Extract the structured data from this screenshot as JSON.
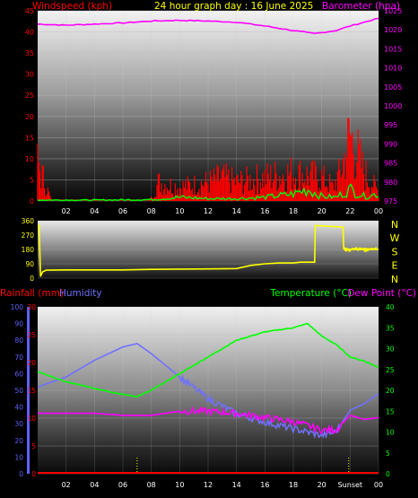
{
  "page": {
    "title": "24 hour graph day : 16 June 2025"
  },
  "colors": {
    "wind": "#ff0000",
    "gust": "#00ff00",
    "barometer": "#ff00ff",
    "direction": "#ffff00",
    "rain": "#ff0000",
    "humidity": "#7070ff",
    "temperature": "#00ff00",
    "dewpoint": "#ff00ff",
    "compass": "#ffff00",
    "axis_left": "#ff0000",
    "axis_hum": "#6060ff",
    "axis_right": "#ffff00",
    "axis_baro": "#ff00ff",
    "sunset_line": "#ffff00"
  },
  "chart_data": [
    {
      "type": "line",
      "name": "wind-barometer",
      "title": "24 hour graph day : 16 June 2025",
      "ylabel": "Windspeed (kph)",
      "y2label": "Barometer (hpa)",
      "x_ticks": [
        "02",
        "04",
        "06",
        "08",
        "10",
        "12",
        "14",
        "16",
        "18",
        "20",
        "22",
        "00"
      ],
      "x_range": [
        0,
        24
      ],
      "ylim": [
        0,
        45
      ],
      "y_ticks": [
        0,
        5,
        10,
        15,
        20,
        25,
        30,
        35,
        40,
        45
      ],
      "y2lim": [
        975,
        1025
      ],
      "y2_ticks": [
        975,
        980,
        985,
        990,
        995,
        1000,
        1005,
        1010,
        1015,
        1020,
        1025
      ],
      "series": [
        {
          "name": "Barometer",
          "axis": "right",
          "x": [
            0,
            2,
            4,
            6,
            8,
            10,
            12,
            14,
            16,
            18,
            19.5,
            21,
            22,
            23,
            24
          ],
          "y": [
            1021.5,
            1021.2,
            1021.5,
            1021.8,
            1022.3,
            1022.5,
            1022.3,
            1022.0,
            1021.0,
            1019.8,
            1019.0,
            1019.8,
            1021.0,
            1022.0,
            1023.0
          ]
        },
        {
          "name": "Windspeed",
          "axis": "left",
          "x": [
            0,
            0.5,
            1,
            7.9,
            8.5,
            10,
            12,
            13,
            14,
            16,
            18,
            20,
            20.8,
            21.3,
            22,
            22.5,
            23,
            23.5,
            24
          ],
          "y": [
            8,
            4,
            0,
            0,
            4,
            3,
            4,
            5,
            4,
            5,
            6,
            5,
            3,
            6,
            14,
            10,
            6,
            4,
            2
          ]
        },
        {
          "name": "Gust",
          "axis": "left",
          "x": [
            0,
            4,
            8,
            10,
            12,
            14,
            16,
            18,
            19,
            20,
            21,
            22,
            23,
            24
          ],
          "y": [
            0.2,
            0.2,
            0.3,
            0.8,
            0.5,
            0.5,
            0.8,
            1.5,
            2.5,
            1.0,
            0.8,
            2.5,
            1.0,
            1.5
          ]
        }
      ]
    },
    {
      "type": "line",
      "name": "wind-direction",
      "ylim": [
        0,
        360
      ],
      "y_ticks": [
        0,
        90,
        180,
        270,
        360
      ],
      "y2_labels": [
        "N",
        "W",
        "S",
        "E",
        "N"
      ],
      "x_range": [
        0,
        24
      ],
      "series": [
        {
          "name": "Direction",
          "x": [
            0,
            0.1,
            0.2,
            0.35,
            0.6,
            2,
            6,
            8,
            10,
            12,
            14,
            15,
            16,
            17,
            18,
            18.5,
            19.5,
            19.55,
            21.5,
            21.55,
            22,
            23,
            24
          ],
          "y": [
            330,
            330,
            10,
            40,
            50,
            52,
            52,
            55,
            57,
            58,
            60,
            80,
            90,
            95,
            95,
            100,
            100,
            330,
            320,
            190,
            180,
            185,
            180
          ]
        }
      ]
    },
    {
      "type": "line",
      "name": "temperature-humidity-rain",
      "ylabel": "Rainfall (mm)",
      "y_humidity_label": "Humidity",
      "y2label": "Temperature (°C)",
      "y3label": "Dew Point (°C)",
      "x_ticks": [
        "02",
        "04",
        "06",
        "08",
        "10",
        "12",
        "14",
        "16",
        "18",
        "20",
        "Sunset",
        "00"
      ],
      "x_range": [
        0,
        24
      ],
      "ylim_rain": [
        0,
        30
      ],
      "y_ticks_rain": [
        0,
        5,
        10,
        15,
        20,
        25,
        30
      ],
      "ylim_humidity": [
        0,
        100
      ],
      "y_ticks_humidity": [
        0,
        10,
        20,
        30,
        40,
        50,
        60,
        70,
        80,
        90,
        100
      ],
      "y2lim": [
        0,
        40
      ],
      "y2_ticks": [
        0,
        5,
        10,
        15,
        20,
        25,
        30,
        35,
        40
      ],
      "series": [
        {
          "name": "Temperature",
          "axis": "right",
          "x": [
            0,
            2,
            4,
            6,
            7,
            8,
            10,
            12,
            14,
            16,
            18,
            19,
            20,
            21,
            22,
            23,
            24
          ],
          "y": [
            24.5,
            22.0,
            20.5,
            19.0,
            18.5,
            20.0,
            24.0,
            28.0,
            32.0,
            34.0,
            35.0,
            36.0,
            33.0,
            31.0,
            28.0,
            27.0,
            25.5
          ]
        },
        {
          "name": "Dew Point",
          "axis": "right",
          "x": [
            0,
            2,
            4,
            6,
            8,
            10,
            12,
            14,
            16,
            18,
            20,
            21,
            22,
            23,
            24
          ],
          "y": [
            14.5,
            14.5,
            14.5,
            14.0,
            14.0,
            15.0,
            15.0,
            14.5,
            13.5,
            12.5,
            10.5,
            10.5,
            14.0,
            13.0,
            13.5
          ]
        },
        {
          "name": "Humidity",
          "axis": "humidity",
          "x": [
            0,
            2,
            4,
            6,
            7,
            8,
            10,
            12,
            14,
            16,
            18,
            19,
            20,
            21,
            22,
            23,
            24
          ],
          "y": [
            52,
            58,
            68,
            76,
            78,
            72,
            58,
            45,
            36,
            31,
            27,
            25,
            23,
            25,
            38,
            42,
            48
          ]
        },
        {
          "name": "Rainfall",
          "axis": "left",
          "x": [
            0,
            24
          ],
          "y": [
            0,
            0
          ]
        }
      ],
      "markers": [
        {
          "label": "",
          "x": 7
        },
        {
          "label": "Sunset",
          "x": 21.9
        }
      ]
    }
  ]
}
